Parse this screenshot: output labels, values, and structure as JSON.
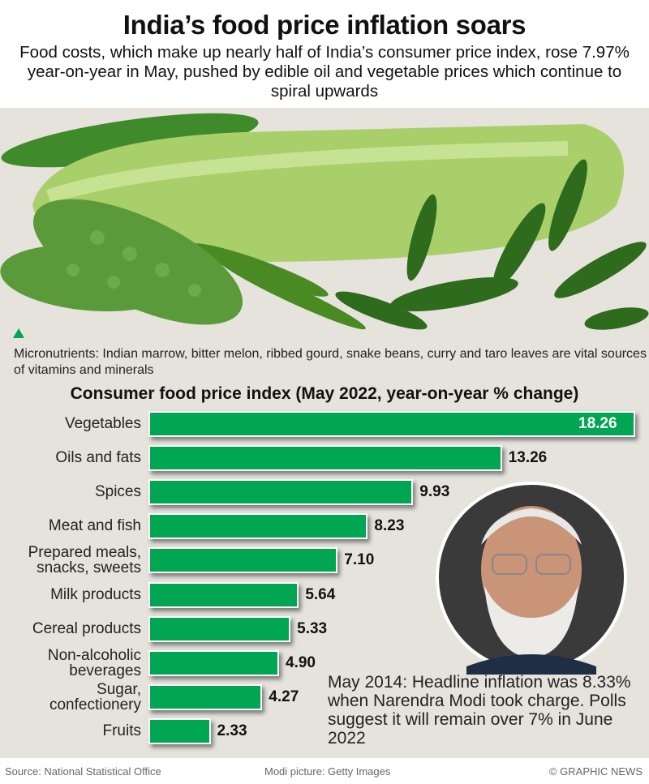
{
  "header": {
    "title": "India’s food price inflation soars",
    "subtitle": "Food costs, which make up nearly half of India’s consumer price index, rose 7.97% year-on-year in May, pushed by edible oil and vegetable prices which continue to spiral upwards"
  },
  "photo_caption": "Micronutrients: Indian marrow, bitter melon, ribbed gourd, snake beans, curry and taro leaves are vital sources of vitamins and minerals",
  "chart_data": {
    "type": "bar",
    "orientation": "horizontal",
    "title": "Consumer food price index (May 2022, year-on-year % change)",
    "categories": [
      "Vegetables",
      "Oils and fats",
      "Spices",
      "Meat and fish",
      "Prepared meals, snacks, sweets",
      "Milk products",
      "Cereal products",
      "Non-alcoholic beverages",
      "Sugar, confectionery",
      "Fruits"
    ],
    "labels": [
      "18.26",
      "13.26",
      "9.93",
      "8.23",
      "7.10",
      "5.64",
      "5.33",
      "4.90",
      "4.27",
      "2.33"
    ],
    "values": [
      18.26,
      13.26,
      9.93,
      8.23,
      7.1,
      5.64,
      5.33,
      4.9,
      4.27,
      2.33
    ],
    "bar_color": "#00a651",
    "grid": false
  },
  "note": "May 2014: Headline inflation was 8.33% when Narendra Modi took charge. Polls suggest it will remain over 7% in June 2022",
  "footer": {
    "source": "Source: National Statistical Office",
    "photo_credit": "Modi picture: Getty Images",
    "copyright": "© GRAPHIC NEWS"
  }
}
